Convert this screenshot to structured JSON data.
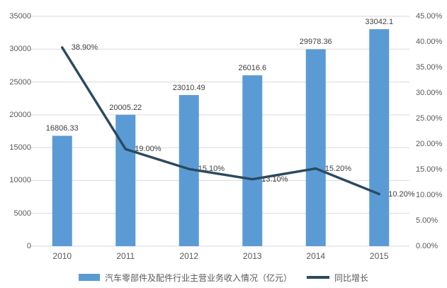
{
  "chart_data": {
    "type": "bar",
    "subtype": "combo-bar-line-dual-axis",
    "title": "",
    "categories": [
      "2010",
      "2011",
      "2012",
      "2013",
      "2014",
      "2015"
    ],
    "series": [
      {
        "name": "汽车零部件及配件行业主营业务收入情况（亿元）",
        "type": "bar",
        "axis": "left",
        "values": [
          16806.33,
          20005.22,
          23010.49,
          26016.6,
          29978.36,
          33042.1
        ],
        "data_labels": [
          "16806.33",
          "20005.22",
          "23010.49",
          "26016.6",
          "29978.36",
          "33042.1"
        ]
      },
      {
        "name": "同比增长",
        "type": "line",
        "axis": "right",
        "values": [
          38.9,
          19.0,
          15.1,
          13.1,
          15.2,
          10.2
        ],
        "data_labels": [
          "38.90%",
          "19.00%",
          "15.10%",
          "13.10%",
          "15.20%",
          "10.20%"
        ]
      }
    ],
    "left_axis": {
      "min": 0,
      "max": 35000,
      "step": 5000,
      "ticks": [
        "0",
        "5000",
        "10000",
        "15000",
        "20000",
        "25000",
        "30000",
        "35000"
      ]
    },
    "right_axis": {
      "min": 0,
      "max": 45,
      "step": 5,
      "ticks": [
        "0.00%",
        "5.00%",
        "10.00%",
        "15.00%",
        "20.00%",
        "25.00%",
        "30.00%",
        "35.00%",
        "40.00%",
        "45.00%"
      ]
    },
    "grid": true,
    "legend_position": "bottom"
  },
  "legend": {
    "bar_label": "汽车零部件及配件行业主营业务收入情况（亿元）",
    "line_label": "同比增长"
  },
  "colors": {
    "bar": "#5B9BD5",
    "line": "#2B4A5E",
    "grid": "#D9D9D9",
    "axis_text": "#595959",
    "data_label": "#404040",
    "background": "#FFFFFF"
  }
}
